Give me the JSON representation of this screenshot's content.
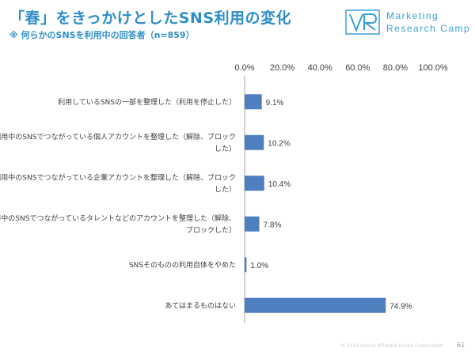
{
  "header": {
    "title": "「春」をきっかけとしたSNS利用の変化",
    "subtitle": "※ 何らかのSNSを利用中の回答者（n=859）"
  },
  "logo": {
    "mark": "VR",
    "line1": "Marketing",
    "line2": "Research Camp",
    "color": "#3aa0d8"
  },
  "chart_data": {
    "type": "bar",
    "orientation": "horizontal",
    "categories": [
      [
        "利用しているSNSの一部を整理した（利用を停止した）"
      ],
      [
        "利用中のSNSでつながっている個人アカウントを整理した（解除、ブロック",
        "した）"
      ],
      [
        "利用中のSNSでつながっている企業アカウントを整理した（解除、ブロック",
        "した）"
      ],
      [
        "利用中のSNSでつながっているタレントなどのアカウントを整理した（解除、",
        "ブロックした）"
      ],
      [
        "SNSそのものの利用自体をやめた"
      ],
      [
        "あてはまるものはない"
      ]
    ],
    "values": [
      9.1,
      10.2,
      10.4,
      7.8,
      1.0,
      74.9
    ],
    "data_labels": [
      "9.1%",
      "10.2%",
      "10.4%",
      "7.8%",
      "1.0%",
      "74.9%"
    ],
    "xlim": [
      0,
      100
    ],
    "ticks": [
      0,
      20,
      40,
      60,
      80,
      100
    ],
    "tick_labels": [
      "0.0%",
      "20.0%",
      "40.0%",
      "60.0%",
      "80.0%",
      "100.0%"
    ],
    "xaxis_position": "top",
    "grid": false,
    "bar_color": "#4f7fbf"
  },
  "footer": {
    "copyright": "© 2019 Kantar Millward Brown Corporation",
    "page_number": "61"
  }
}
